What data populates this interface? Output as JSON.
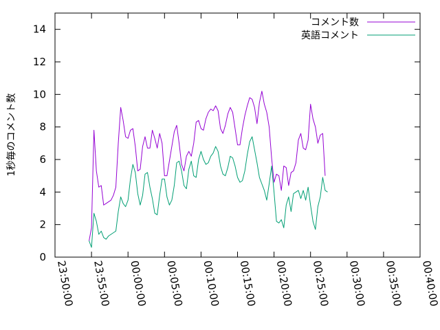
{
  "chart_data": {
    "type": "line",
    "title": "",
    "xlabel": "",
    "ylabel": "1秒毎のコメント数",
    "ylim": [
      0,
      15
    ],
    "xlim": [
      "23:50:00",
      "00:40:00"
    ],
    "y_ticks": [
      0,
      2,
      4,
      6,
      8,
      10,
      12,
      14
    ],
    "x_ticks": [
      "23:50:00",
      "23:55:00",
      "00:00:00",
      "00:05:00",
      "00:10:00",
      "00:15:00",
      "00:20:00",
      "00:25:00",
      "00:30:00",
      "00:35:00",
      "00:40:00"
    ],
    "grid": false,
    "legend_position": "top-right",
    "x_start": "23:54:40",
    "x_step_seconds": 20,
    "series": [
      {
        "name": "コメント数",
        "color": "#9400d3",
        "values": [
          1.0,
          1.8,
          7.8,
          5.3,
          4.3,
          4.4,
          3.2,
          3.3,
          3.4,
          3.5,
          3.8,
          4.3,
          7.0,
          9.2,
          8.4,
          7.4,
          7.3,
          7.8,
          7.9,
          6.8,
          5.3,
          5.4,
          6.8,
          7.4,
          6.7,
          6.7,
          7.8,
          7.3,
          6.7,
          7.6,
          7.0,
          5.0,
          5.0,
          5.9,
          6.8,
          7.7,
          8.1,
          7.0,
          5.7,
          5.3,
          6.2,
          6.5,
          6.2,
          7.0,
          8.3,
          8.4,
          7.9,
          7.8,
          8.5,
          8.9,
          9.1,
          9.0,
          9.3,
          9.0,
          7.9,
          7.6,
          8.1,
          8.8,
          9.2,
          8.9,
          7.9,
          6.9,
          6.9,
          7.9,
          8.7,
          9.3,
          9.8,
          9.7,
          9.2,
          8.2,
          9.5,
          10.2,
          9.4,
          8.9,
          8.0,
          6.1,
          4.6,
          5.1,
          5.0,
          4.1,
          5.6,
          5.5,
          4.4,
          5.2,
          5.3,
          5.8,
          7.2,
          7.6,
          6.7,
          6.6,
          7.2,
          9.4,
          8.5,
          8.0,
          7.0,
          7.5,
          7.6,
          5.0
        ]
      },
      {
        "name": "英語コメント",
        "color": "#009e73",
        "values": [
          1.0,
          0.6,
          2.7,
          2.2,
          1.4,
          1.6,
          1.2,
          1.1,
          1.3,
          1.4,
          1.5,
          1.6,
          2.8,
          3.7,
          3.3,
          3.1,
          3.5,
          4.8,
          5.7,
          5.2,
          3.9,
          3.2,
          3.8,
          5.1,
          5.2,
          4.3,
          3.6,
          2.7,
          2.6,
          3.8,
          4.8,
          4.8,
          3.7,
          3.2,
          3.5,
          4.4,
          5.8,
          5.9,
          5.3,
          4.4,
          4.2,
          5.4,
          5.9,
          5.0,
          4.9,
          6.0,
          6.5,
          6.0,
          5.7,
          5.8,
          6.2,
          6.4,
          6.8,
          6.5,
          5.6,
          5.1,
          5.0,
          5.5,
          6.2,
          6.1,
          5.6,
          4.9,
          4.6,
          4.7,
          5.3,
          6.3,
          7.1,
          7.4,
          6.6,
          5.8,
          4.9,
          4.5,
          4.1,
          3.5,
          4.5,
          5.6,
          4.0,
          2.2,
          2.1,
          2.3,
          1.8,
          3.2,
          3.7,
          2.8,
          3.9,
          4.0,
          4.1,
          3.6,
          4.1,
          3.5,
          4.3,
          3.2,
          2.2,
          1.7,
          3.1,
          3.7,
          4.9,
          4.1,
          4.0
        ]
      }
    ]
  }
}
